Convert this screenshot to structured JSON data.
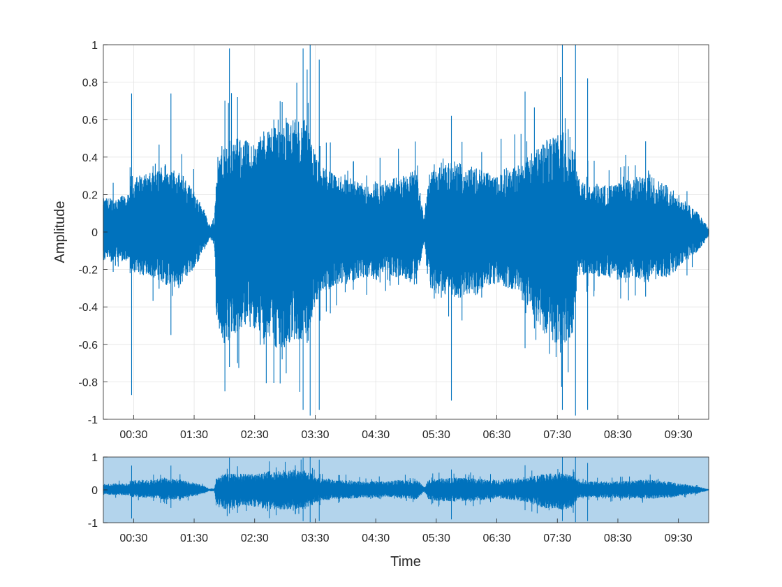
{
  "chart_data": [
    {
      "type": "line",
      "panel": "main",
      "title": "",
      "xlabel": "",
      "ylabel": "Amplitude",
      "ylim": [
        -1,
        1
      ],
      "xlim_seconds": [
        0,
        600
      ],
      "grid": true,
      "x_tick_labels": [
        "00:30",
        "01:30",
        "02:30",
        "03:30",
        "04:30",
        "05:30",
        "06:30",
        "07:30",
        "08:30",
        "09:30"
      ],
      "y_tick_labels": [
        "1",
        "0.8",
        "0.6",
        "0.4",
        "0.2",
        "0",
        "-0.2",
        "-0.4",
        "-0.6",
        "-0.8",
        "-1"
      ],
      "series_color": "#0072BD",
      "envelope": {
        "time_seconds": [
          0,
          26,
          27,
          52,
          60,
          75,
          80,
          90,
          100,
          105,
          110,
          112,
          115,
          120,
          130,
          140,
          150,
          160,
          170,
          180,
          190,
          200,
          215,
          222,
          230,
          240,
          250,
          260,
          270,
          280,
          290,
          300,
          310,
          318,
          322,
          330,
          340,
          350,
          360,
          370,
          380,
          390,
          400,
          410,
          420,
          430,
          440,
          445,
          455,
          465,
          470,
          480,
          490,
          500,
          510,
          520,
          530,
          540,
          550,
          560,
          570,
          580,
          590,
          600
        ],
        "positive": [
          0.18,
          0.2,
          0.3,
          0.32,
          0.38,
          0.32,
          0.3,
          0.22,
          0.12,
          0.04,
          0.05,
          0.38,
          0.42,
          0.5,
          0.5,
          0.5,
          0.48,
          0.55,
          0.6,
          0.6,
          0.6,
          0.6,
          0.35,
          0.35,
          0.3,
          0.3,
          0.28,
          0.25,
          0.28,
          0.25,
          0.3,
          0.3,
          0.35,
          0.08,
          0.3,
          0.35,
          0.36,
          0.38,
          0.36,
          0.35,
          0.32,
          0.3,
          0.35,
          0.36,
          0.4,
          0.45,
          0.5,
          0.5,
          0.55,
          0.5,
          0.3,
          0.25,
          0.26,
          0.25,
          0.26,
          0.28,
          0.3,
          0.32,
          0.28,
          0.25,
          0.2,
          0.15,
          0.1,
          0.02
        ],
        "negative": [
          0.16,
          0.16,
          0.22,
          0.25,
          0.3,
          0.3,
          0.26,
          0.2,
          0.1,
          0.04,
          0.05,
          0.45,
          0.55,
          0.6,
          0.56,
          0.5,
          0.52,
          0.58,
          0.62,
          0.62,
          0.58,
          0.58,
          0.32,
          0.32,
          0.28,
          0.28,
          0.26,
          0.24,
          0.26,
          0.22,
          0.24,
          0.25,
          0.3,
          0.06,
          0.28,
          0.34,
          0.35,
          0.36,
          0.34,
          0.34,
          0.3,
          0.28,
          0.3,
          0.32,
          0.4,
          0.5,
          0.58,
          0.58,
          0.62,
          0.55,
          0.25,
          0.22,
          0.24,
          0.24,
          0.26,
          0.25,
          0.25,
          0.28,
          0.26,
          0.24,
          0.2,
          0.15,
          0.1,
          0.02
        ]
      },
      "notable_peaks": [
        {
          "time_seconds": 28,
          "positive": 0.74,
          "negative": 0.87
        },
        {
          "time_seconds": 67,
          "positive": 0.74,
          "negative": 0.55
        },
        {
          "time_seconds": 125,
          "positive": 0.98,
          "negative": 0.72
        },
        {
          "time_seconds": 133,
          "positive": 0.72,
          "negative": 0.7
        },
        {
          "time_seconds": 198,
          "positive": 0.98,
          "negative": 0.95
        },
        {
          "time_seconds": 205,
          "positive": 1.0,
          "negative": 0.98
        },
        {
          "time_seconds": 214,
          "positive": 0.92,
          "negative": 0.95
        },
        {
          "time_seconds": 345,
          "positive": 0.62,
          "negative": 0.9
        },
        {
          "time_seconds": 418,
          "positive": 0.75,
          "negative": 0.62
        },
        {
          "time_seconds": 455,
          "positive": 1.0,
          "negative": 0.95
        },
        {
          "time_seconds": 468,
          "positive": 1.0,
          "negative": 0.98
        },
        {
          "time_seconds": 480,
          "positive": 0.82,
          "negative": 0.95
        }
      ]
    },
    {
      "type": "line",
      "panel": "overview",
      "xlabel": "Time",
      "ylabel": "",
      "ylim": [
        -1,
        1
      ],
      "xlim_seconds": [
        0,
        600
      ],
      "grid": false,
      "background_color": "#B3D4EC",
      "x_tick_labels": [
        "00:30",
        "01:30",
        "02:30",
        "03:30",
        "04:30",
        "05:30",
        "06:30",
        "07:30",
        "08:30",
        "09:30"
      ],
      "y_tick_labels": [
        "1",
        "0",
        "-1"
      ],
      "series_color": "#0072BD"
    }
  ]
}
